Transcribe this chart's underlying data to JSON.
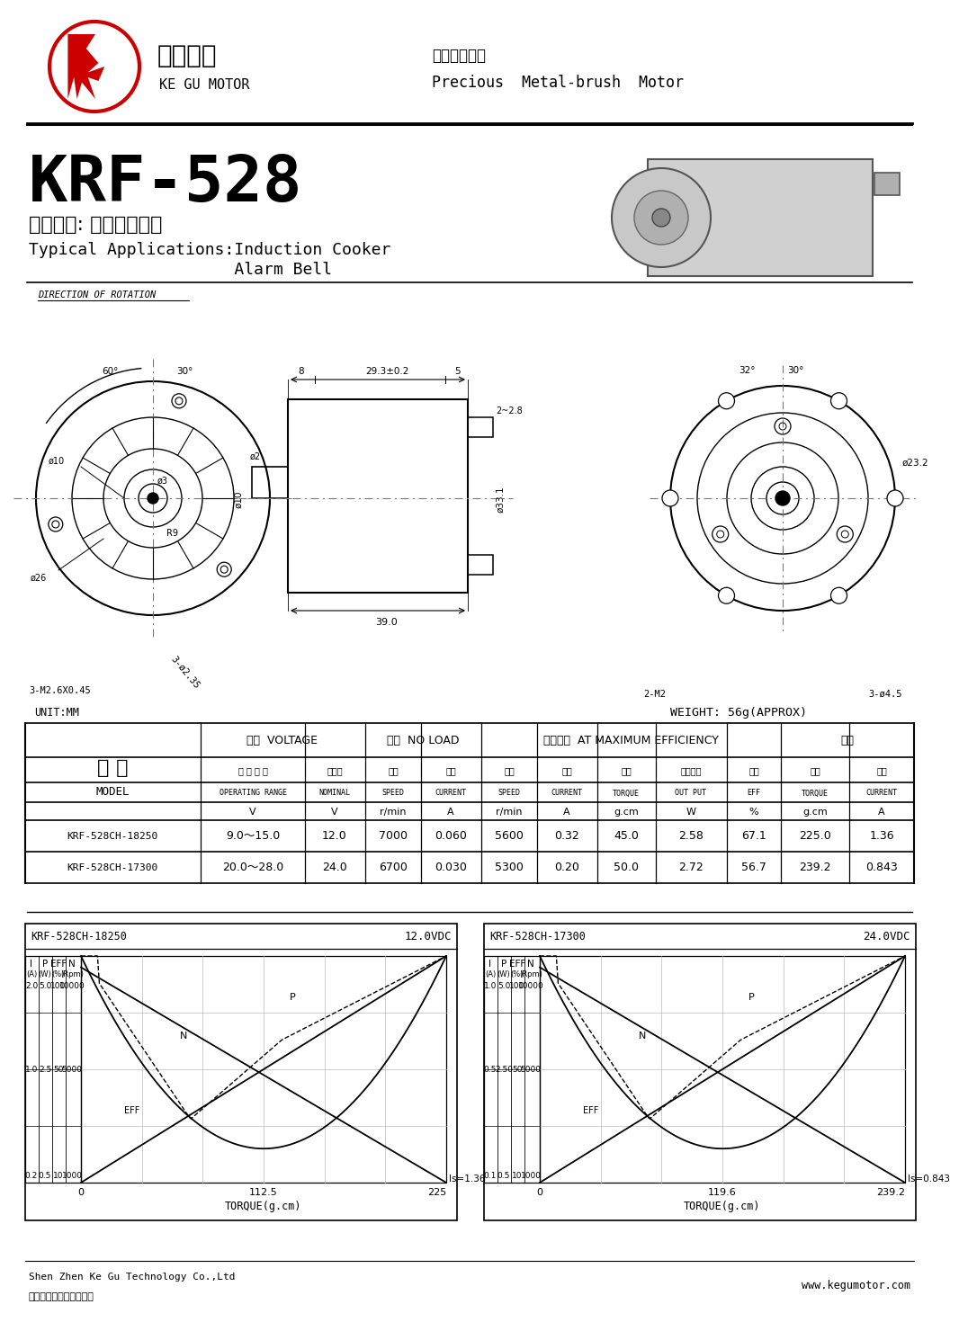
{
  "bg_color": "#ffffff",
  "title_model": "KRF-528",
  "title_cn": "主要用途: 电磁炉、警铃",
  "title_en1": "Typical Applications:Induction Cooker",
  "title_en2": "                     Alarm Bell",
  "header_cn": "贵金属刷电机",
  "header_en": "Precious  Metal-brush  Motor",
  "unit_mm": "UNIT:MM",
  "weight": "WEIGHT: 56g(APPROX)",
  "company1": "Shen Zhen Ke Gu Technology Co.,Ltd",
  "company2": "深圳市科固技术有限公司",
  "website": "www.kegumotor.com",
  "row1": [
    "KRF-528CH-18250",
    "9.0～15.0",
    "12.0",
    "7000",
    "0.060",
    "5600",
    "0.32",
    "45.0",
    "2.58",
    "67.1",
    "225.0",
    "1.36"
  ],
  "row2": [
    "KRF-528CH-17300",
    "20.0～28.0",
    "24.0",
    "6700",
    "0.030",
    "5300",
    "0.20",
    "50.0",
    "2.72",
    "56.7",
    "239.2",
    "0.843"
  ],
  "chart1_title": "KRF-528CH-18250",
  "chart1_voltage": "12.0VDC",
  "chart1_torque_max": 225,
  "chart1_torque_mid": 112.5,
  "chart1_Is": "Is=1.36",
  "chart1_I_top": "2.0",
  "chart1_I_mid": "1.0",
  "chart1_I_bot": "0.2",
  "chart1_P_top": "5.0",
  "chart1_P_mid": "2.5",
  "chart1_P_bot": "0.5",
  "chart1_EFF_top": "100",
  "chart1_EFF_mid": "50",
  "chart1_EFF_bot": "10",
  "chart1_N_top": "10000",
  "chart1_N_mid": "5000",
  "chart1_N_bot": "1000",
  "chart2_title": "KRF-528CH-17300",
  "chart2_voltage": "24.0VDC",
  "chart2_torque_max": 239.2,
  "chart2_torque_mid": 119.6,
  "chart2_Is": "Is=0.843",
  "chart2_I_top": "1.0",
  "chart2_I_mid": "0.5",
  "chart2_I_bot": "0.1",
  "chart2_P_top": "5.0",
  "chart2_P_mid": "2.50",
  "chart2_P_bot": "0.5",
  "chart2_EFF_top": "100",
  "chart2_EFF_mid": "50",
  "chart2_EFF_bot": "10",
  "chart2_N_top": "10000",
  "chart2_N_mid": "5000",
  "chart2_N_bot": "1000"
}
